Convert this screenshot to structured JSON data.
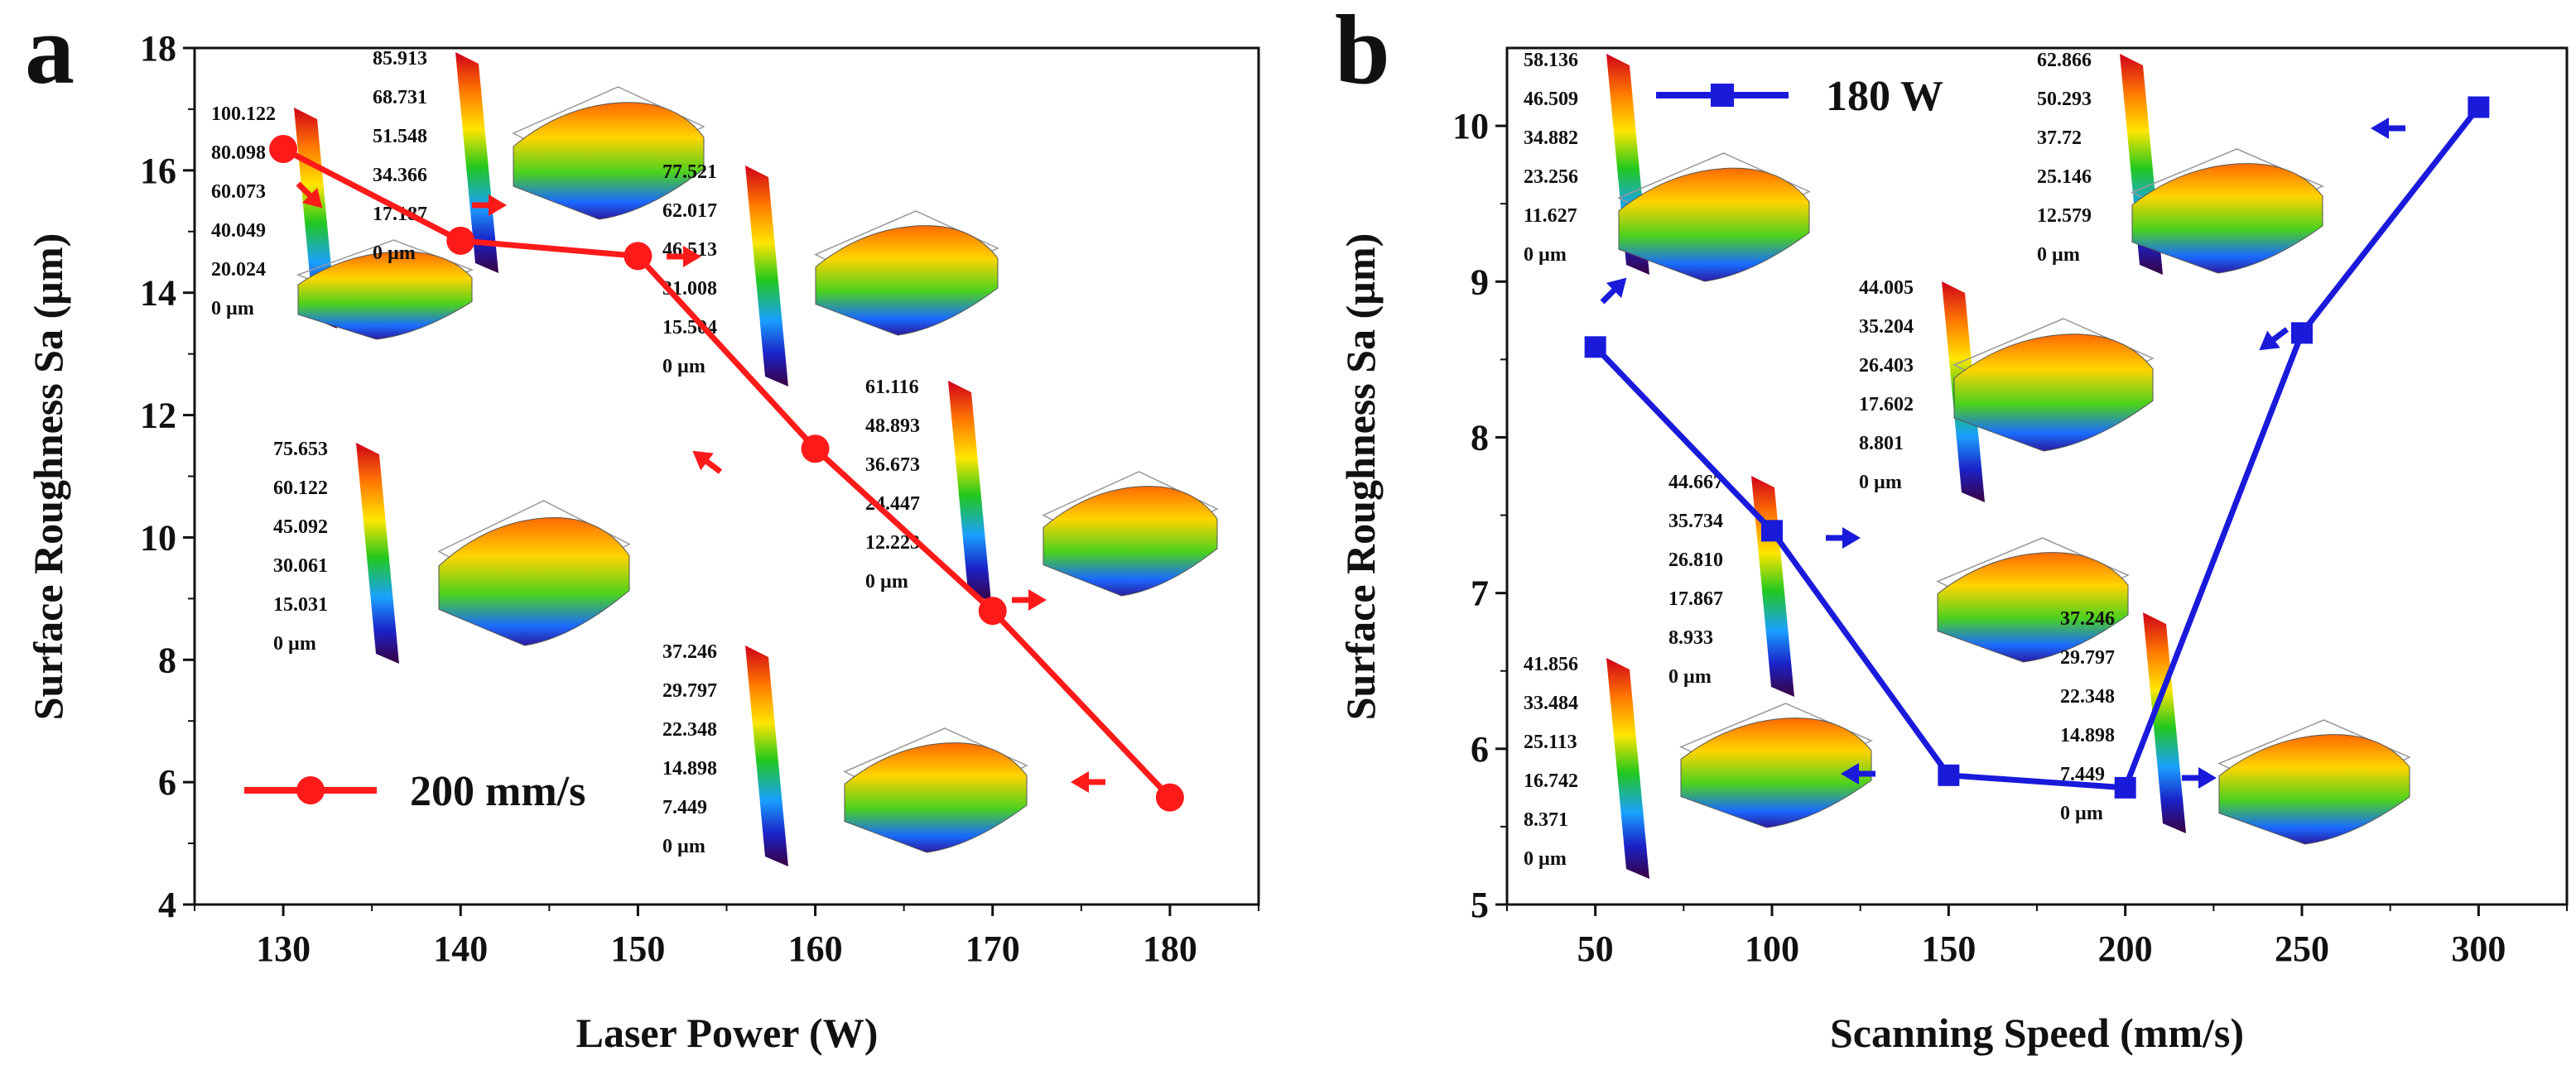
{
  "colors": {
    "panel_a_series": "#ff1a1a",
    "panel_b_series": "#1a1adb",
    "axis": "#111111"
  },
  "chart_data": [
    {
      "panel": "a",
      "type": "line",
      "xlabel": "Laser Power (W)",
      "ylabel": "Surface Roughness Sa (µm)",
      "xlim": [
        125,
        185
      ],
      "ylim": [
        4,
        18
      ],
      "x_ticks": [
        "130",
        "140",
        "150",
        "160",
        "170",
        "180"
      ],
      "y_ticks": [
        "4",
        "6",
        "8",
        "10",
        "12",
        "14",
        "16",
        "18"
      ],
      "series": [
        {
          "name": "200 mm/s",
          "marker": "circle",
          "x": [
            130,
            140,
            150,
            160,
            170,
            180
          ],
          "values": [
            16.35,
            14.85,
            14.6,
            11.45,
            8.8,
            5.75
          ]
        }
      ],
      "legend": "200 mm/s",
      "insets": [
        {
          "labels": [
            "100.122",
            "80.098",
            "60.073",
            "40.049",
            "20.024",
            "0 µm"
          ]
        },
        {
          "labels": [
            "85.913",
            "68.731",
            "51.548",
            "34.366",
            "17.187",
            "0 µm"
          ]
        },
        {
          "labels": [
            "77.521",
            "62.017",
            "46.513",
            "31.008",
            "15.504",
            "0 µm"
          ]
        },
        {
          "labels": [
            "75.653",
            "60.122",
            "45.092",
            "30.061",
            "15.031",
            "0 µm"
          ]
        },
        {
          "labels": [
            "61.116",
            "48.893",
            "36.673",
            "24.447",
            "12.223",
            "0 µm"
          ]
        },
        {
          "labels": [
            "37.246",
            "29.797",
            "22.348",
            "14.898",
            "7.449",
            "0 µm"
          ]
        }
      ]
    },
    {
      "panel": "b",
      "type": "line",
      "xlabel": "Scanning Speed (mm/s)",
      "ylabel": "Surface Roughness Sa (µm)",
      "xlim": [
        25,
        325
      ],
      "ylim": [
        5,
        10.5
      ],
      "x_ticks": [
        "50",
        "100",
        "150",
        "200",
        "250",
        "300"
      ],
      "y_ticks": [
        "5",
        "6",
        "7",
        "8",
        "9",
        "10"
      ],
      "series": [
        {
          "name": "180 W",
          "marker": "square",
          "x": [
            50,
            100,
            150,
            200,
            250,
            300
          ],
          "values": [
            8.58,
            7.4,
            5.83,
            5.75,
            8.67,
            10.12
          ]
        }
      ],
      "legend": "180 W",
      "insets": [
        {
          "labels": [
            "58.136",
            "46.509",
            "34.882",
            "23.256",
            "11.627",
            "0 µm"
          ]
        },
        {
          "labels": [
            "62.866",
            "50.293",
            "37.72",
            "25.146",
            "12.579",
            "0 µm"
          ]
        },
        {
          "labels": [
            "44.005",
            "35.204",
            "26.403",
            "17.602",
            "8.801",
            "0 µm"
          ]
        },
        {
          "labels": [
            "44.667",
            "35.734",
            "26.810",
            "17.867",
            "8.933",
            "0 µm"
          ]
        },
        {
          "labels": [
            "41.856",
            "33.484",
            "25.113",
            "16.742",
            "8.371",
            "0 µm"
          ]
        },
        {
          "labels": [
            "37.246",
            "29.797",
            "22.348",
            "14.898",
            "7.449",
            "0 µm"
          ]
        }
      ]
    }
  ]
}
